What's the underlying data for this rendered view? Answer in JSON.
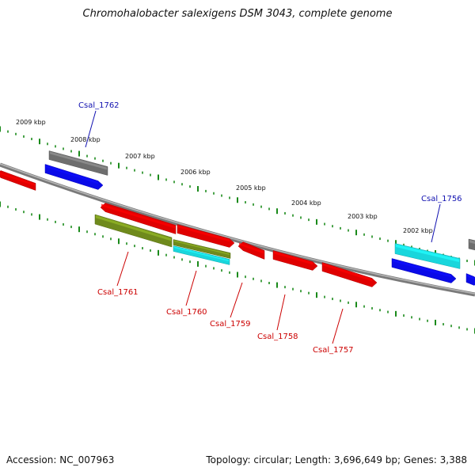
{
  "title": "Chromohalobacter salexigens DSM 3043, complete genome",
  "footer": {
    "accession": "Accession: NC_007963",
    "summary": "Topology: circular; Length: 3,696,649 bp; Genes: 3,388"
  },
  "colors": {
    "backbone": "#7a7a7a",
    "ticks": "#1a8a1a",
    "label_forward": "#1010b0",
    "label_reverse": "#cc0000",
    "red": "#e00000",
    "blue": "#0a0ae8",
    "gray": "#6e6e6e",
    "cyan": "#19d6dc",
    "olive": "#6f8a1c"
  },
  "scale_labels": [
    {
      "id": "2009",
      "text": "2009 kbp"
    },
    {
      "id": "2008",
      "text": "2008 kbp"
    },
    {
      "id": "2007",
      "text": "2007 kbp"
    },
    {
      "id": "2006",
      "text": "2006 kbp"
    },
    {
      "id": "2005",
      "text": "2005 kbp"
    },
    {
      "id": "2004",
      "text": "2004 kbp"
    },
    {
      "id": "2003",
      "text": "2003 kbp"
    },
    {
      "id": "2002",
      "text": "2002 kbp"
    }
  ],
  "gene_labels": [
    {
      "id": "csal_1762",
      "text": "Csal_1762",
      "strand": "forward"
    },
    {
      "id": "csal_1756",
      "text": "Csal_1756",
      "strand": "forward"
    },
    {
      "id": "csal_1761",
      "text": "Csal_1761",
      "strand": "reverse"
    },
    {
      "id": "csal_1760",
      "text": "Csal_1760",
      "strand": "reverse"
    },
    {
      "id": "csal_1759",
      "text": "Csal_1759",
      "strand": "reverse"
    },
    {
      "id": "csal_1758",
      "text": "Csal_1758",
      "strand": "reverse"
    },
    {
      "id": "csal_1757",
      "text": "Csal_1757",
      "strand": "reverse"
    }
  ],
  "features": [
    {
      "id": "f-red-left",
      "color": "red",
      "direction": "reverse"
    },
    {
      "id": "f-gray-1762",
      "color": "gray",
      "direction": "none"
    },
    {
      "id": "f-blue-1762",
      "color": "blue",
      "direction": "forward"
    },
    {
      "id": "f-red-1761",
      "color": "red",
      "direction": "reverse"
    },
    {
      "id": "f-olive-1761",
      "color": "olive",
      "direction": "none"
    },
    {
      "id": "f-red-1760",
      "color": "red",
      "direction": "forward"
    },
    {
      "id": "f-olive-1760",
      "color": "olive",
      "direction": "none"
    },
    {
      "id": "f-cyan-1760",
      "color": "cyan",
      "direction": "none"
    },
    {
      "id": "f-red-1759",
      "color": "red",
      "direction": "reverse"
    },
    {
      "id": "f-red-1758",
      "color": "red",
      "direction": "forward"
    },
    {
      "id": "f-red-1757",
      "color": "red",
      "direction": "forward"
    },
    {
      "id": "f-cyan-1756",
      "color": "cyan",
      "direction": "none"
    },
    {
      "id": "f-blue-1756",
      "color": "blue",
      "direction": "forward"
    },
    {
      "id": "f-gray-right",
      "color": "gray",
      "direction": "none"
    },
    {
      "id": "f-blue-right",
      "color": "blue",
      "direction": "forward"
    }
  ]
}
